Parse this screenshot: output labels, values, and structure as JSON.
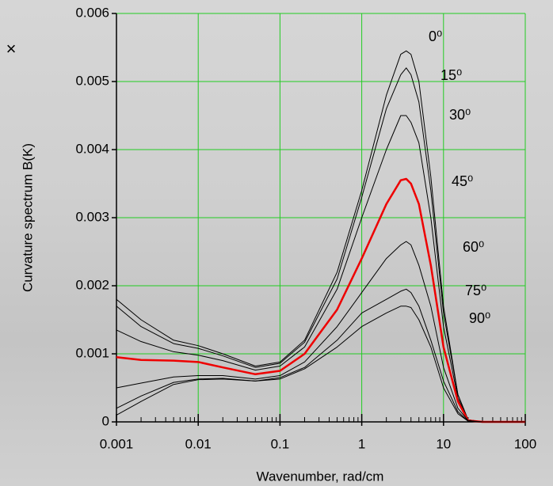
{
  "close_button": "×",
  "chart_data": {
    "type": "line",
    "x_label": "Wavenumber, rad/cm",
    "y_label": "Curvature spectrum B(K)",
    "x_log": true,
    "grid": true,
    "grid_color": "#22cc22",
    "xlim": [
      0.001,
      100
    ],
    "xticks": [
      0.001,
      0.01,
      0.1,
      1,
      10,
      100
    ],
    "xminorticks": [
      0.002,
      0.003,
      0.004,
      0.005,
      0.006,
      0.007,
      0.008,
      0.009,
      0.02,
      0.03,
      0.04,
      0.05,
      0.06,
      0.07,
      0.08,
      0.09,
      0.2,
      0.3,
      0.4,
      0.5,
      0.6,
      0.7,
      0.8,
      0.9,
      2,
      3,
      4,
      5,
      6,
      7,
      8,
      9,
      20,
      30,
      40,
      50,
      60,
      70,
      80,
      90
    ],
    "ylim": [
      0,
      0.006
    ],
    "yticks": [
      0,
      0.001,
      0.002,
      0.003,
      0.004,
      0.005,
      0.006
    ],
    "x": [
      0.001,
      0.002,
      0.005,
      0.01,
      0.02,
      0.05,
      0.1,
      0.2,
      0.5,
      1,
      2,
      3,
      3.5,
      4,
      5,
      7,
      10,
      15,
      20,
      30,
      100
    ],
    "series": [
      {
        "name": "0⁰",
        "color": "#000000",
        "width": 1,
        "values": [
          0.0018,
          0.0015,
          0.0012,
          0.00112,
          0.001,
          0.00082,
          0.00088,
          0.0012,
          0.0022,
          0.0034,
          0.0048,
          0.0054,
          0.00545,
          0.0054,
          0.005,
          0.0036,
          0.0017,
          0.0004,
          3e-05,
          0,
          0
        ]
      },
      {
        "name": "15⁰",
        "color": "#000000",
        "width": 1,
        "values": [
          0.0017,
          0.0014,
          0.00115,
          0.00108,
          0.00097,
          0.0008,
          0.00086,
          0.00117,
          0.0021,
          0.0033,
          0.0046,
          0.0051,
          0.0052,
          0.0051,
          0.0047,
          0.0034,
          0.0016,
          0.0004,
          3e-05,
          0,
          0
        ]
      },
      {
        "name": "30⁰",
        "color": "#000000",
        "width": 1,
        "values": [
          0.00135,
          0.00118,
          0.00103,
          0.00098,
          0.0009,
          0.00076,
          0.00082,
          0.0011,
          0.00195,
          0.003,
          0.004,
          0.0045,
          0.0045,
          0.0044,
          0.0041,
          0.003,
          0.0014,
          0.00035,
          3e-05,
          0,
          0
        ]
      },
      {
        "name": "45⁰",
        "color": "#ee0000",
        "width": 2.5,
        "values": [
          0.00095,
          0.00091,
          0.0009,
          0.00088,
          0.0008,
          0.0007,
          0.00075,
          0.001,
          0.00165,
          0.0024,
          0.0032,
          0.00355,
          0.00357,
          0.0035,
          0.0032,
          0.0023,
          0.0011,
          0.0003,
          2e-05,
          0,
          0
        ]
      },
      {
        "name": "60⁰",
        "color": "#000000",
        "width": 1,
        "values": [
          0.0005,
          0.00057,
          0.00066,
          0.00068,
          0.00068,
          0.00063,
          0.00068,
          0.00088,
          0.0014,
          0.0019,
          0.0024,
          0.0026,
          0.00265,
          0.0026,
          0.0023,
          0.0017,
          0.0008,
          0.0002,
          2e-05,
          0,
          0
        ]
      },
      {
        "name": "75⁰",
        "color": "#000000",
        "width": 1,
        "values": [
          0.0002,
          0.00038,
          0.00058,
          0.00063,
          0.00064,
          0.0006,
          0.00065,
          0.0008,
          0.0012,
          0.0016,
          0.0018,
          0.00192,
          0.00195,
          0.0019,
          0.0017,
          0.0012,
          0.0006,
          0.00015,
          1e-05,
          0,
          0
        ]
      },
      {
        "name": "90⁰",
        "color": "#000000",
        "width": 1,
        "values": [
          0.0001,
          0.0003,
          0.00055,
          0.00062,
          0.00063,
          0.0006,
          0.00063,
          0.00078,
          0.0011,
          0.0014,
          0.0016,
          0.0017,
          0.0017,
          0.00168,
          0.0015,
          0.0011,
          0.0005,
          0.00012,
          1e-05,
          0,
          0
        ]
      }
    ]
  }
}
